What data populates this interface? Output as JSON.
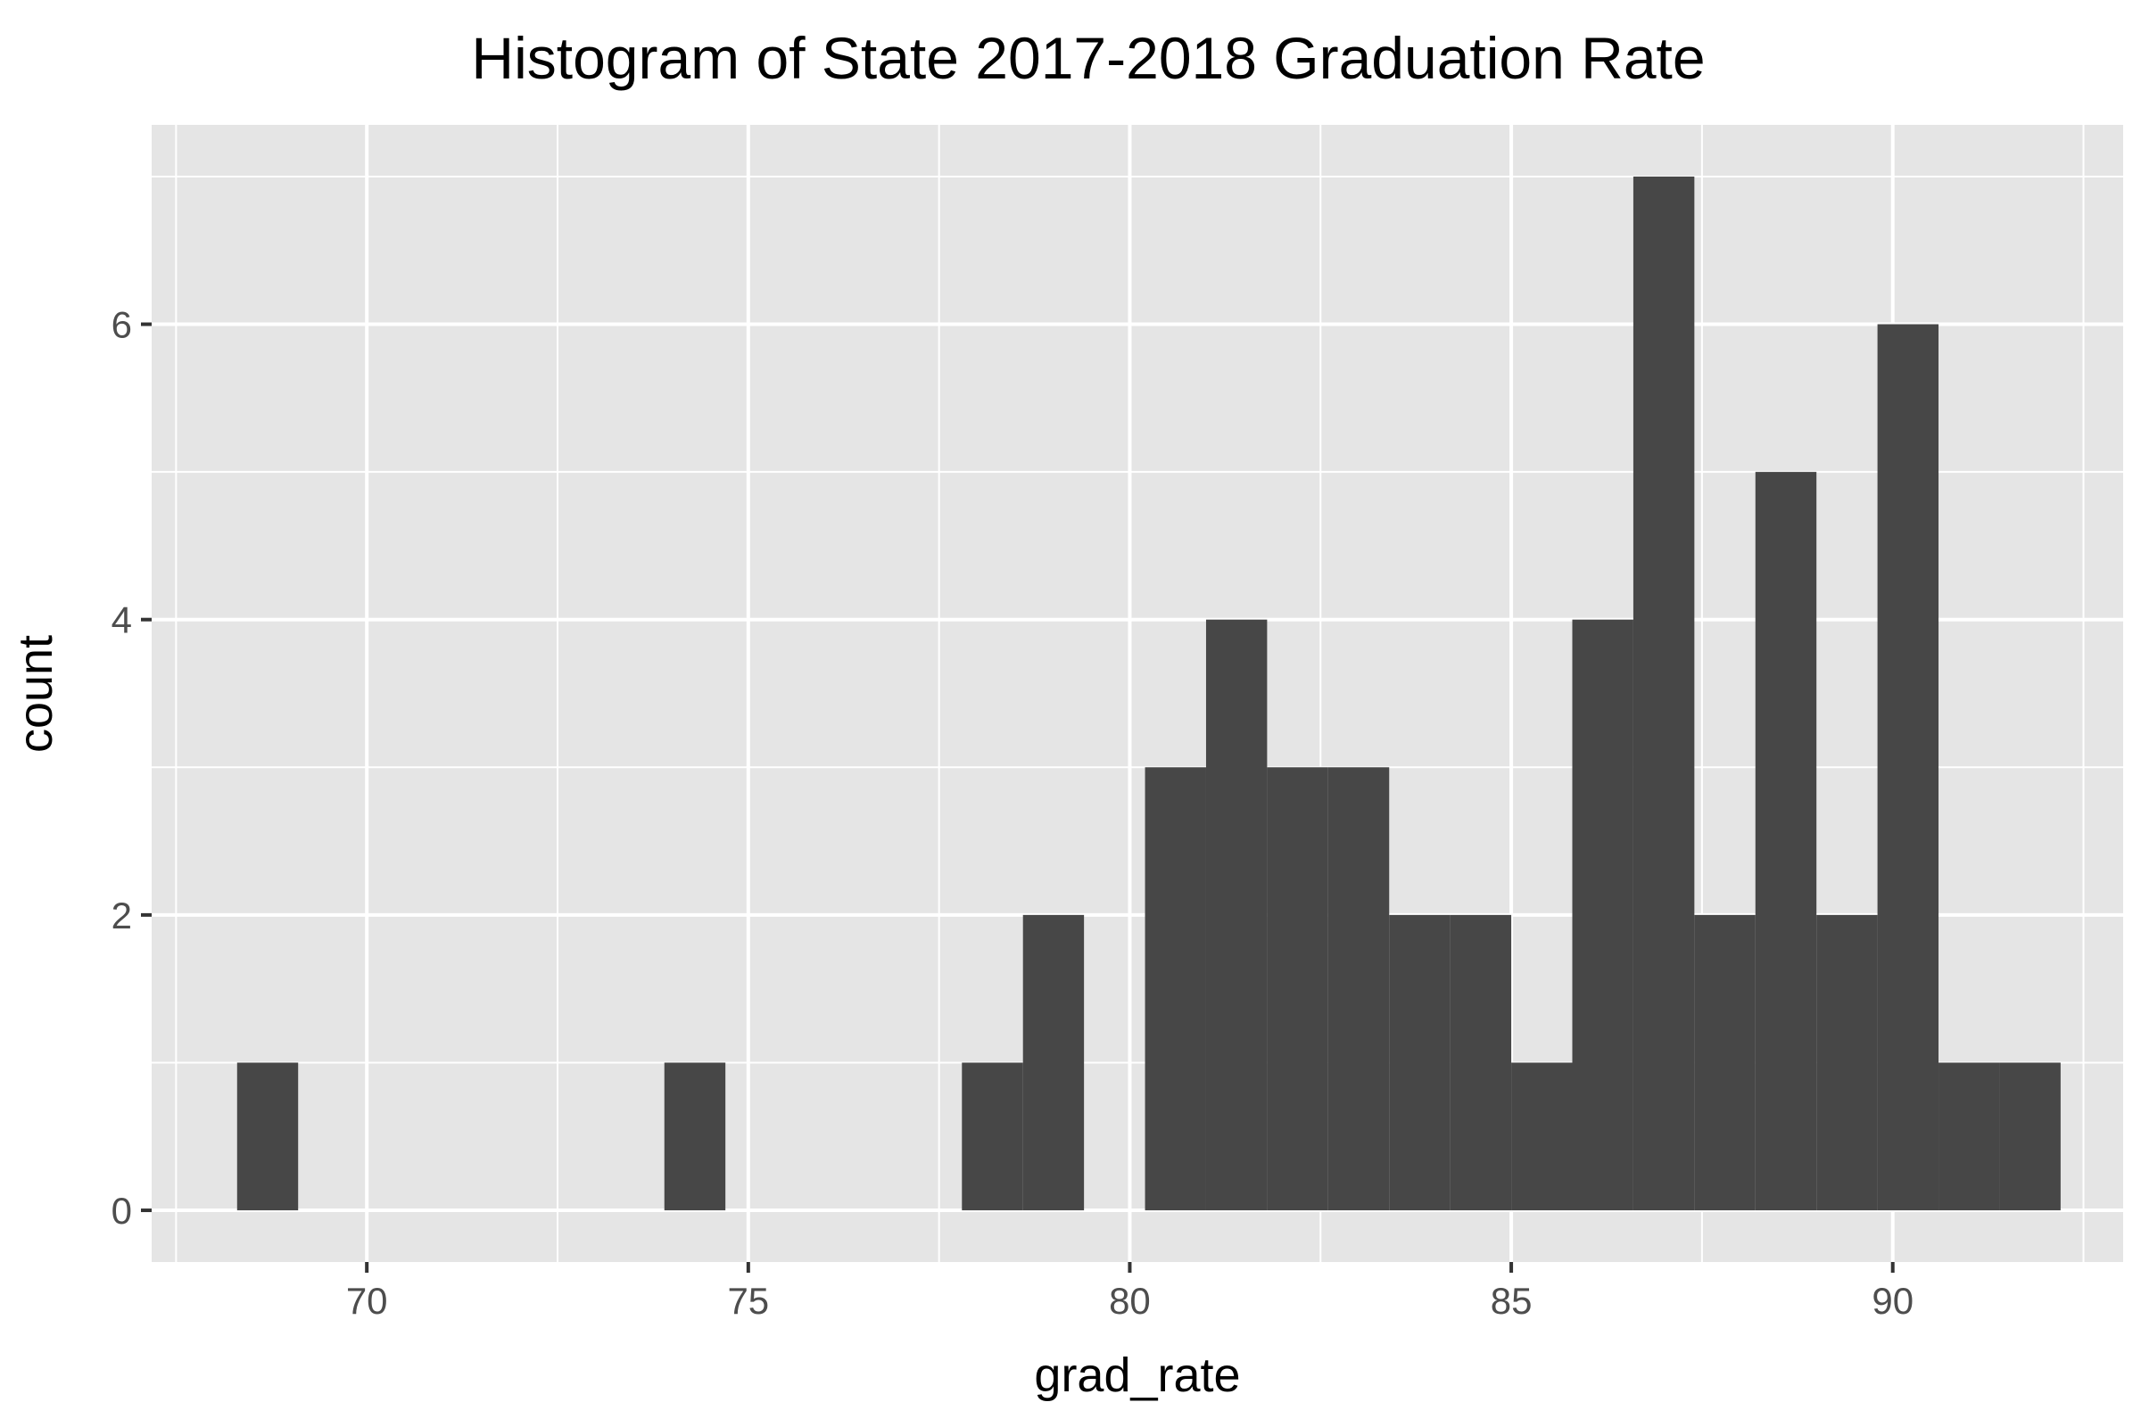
{
  "chart_data": {
    "type": "bar",
    "title": "Histogram of State 2017-2018 Graduation Rate",
    "xlabel": "grad_rate",
    "ylabel": "count",
    "xlim": [
      67.18,
      93.02
    ],
    "ylim": [
      -0.35,
      7.35
    ],
    "x_ticks": [
      70,
      75,
      80,
      85,
      90
    ],
    "x_tick_labels": [
      "70",
      "75",
      "80",
      "85",
      "90"
    ],
    "x_minor_ticks": [
      67.5,
      72.5,
      77.5,
      82.5,
      87.5,
      92.5
    ],
    "y_ticks": [
      0,
      2,
      4,
      6
    ],
    "y_tick_labels": [
      "0",
      "2",
      "4",
      "6"
    ],
    "y_minor_ticks": [
      1,
      3,
      5,
      7
    ],
    "grid": true,
    "panel_color": "#e5e5e5",
    "grid_color": "#ffffff",
    "bar_color": "#474747",
    "bins": [
      {
        "xmin": 68.3,
        "xmax": 69.1,
        "count": 1
      },
      {
        "xmin": 73.9,
        "xmax": 74.7,
        "count": 1
      },
      {
        "xmin": 77.8,
        "xmax": 78.6,
        "count": 1
      },
      {
        "xmin": 78.6,
        "xmax": 79.4,
        "count": 2
      },
      {
        "xmin": 80.2,
        "xmax": 81.0,
        "count": 3
      },
      {
        "xmin": 81.0,
        "xmax": 81.8,
        "count": 4
      },
      {
        "xmin": 81.8,
        "xmax": 82.6,
        "count": 3
      },
      {
        "xmin": 82.6,
        "xmax": 83.4,
        "count": 3
      },
      {
        "xmin": 83.4,
        "xmax": 84.2,
        "count": 2
      },
      {
        "xmin": 84.2,
        "xmax": 85.0,
        "count": 2
      },
      {
        "xmin": 85.0,
        "xmax": 85.8,
        "count": 1
      },
      {
        "xmin": 85.8,
        "xmax": 86.6,
        "count": 4
      },
      {
        "xmin": 86.6,
        "xmax": 87.4,
        "count": 7
      },
      {
        "xmin": 87.4,
        "xmax": 88.2,
        "count": 2
      },
      {
        "xmin": 88.2,
        "xmax": 89.0,
        "count": 5
      },
      {
        "xmin": 89.0,
        "xmax": 89.8,
        "count": 2
      },
      {
        "xmin": 89.8,
        "xmax": 90.6,
        "count": 6
      },
      {
        "xmin": 90.6,
        "xmax": 91.4,
        "count": 1
      },
      {
        "xmin": 91.4,
        "xmax": 92.2,
        "count": 1
      }
    ]
  }
}
